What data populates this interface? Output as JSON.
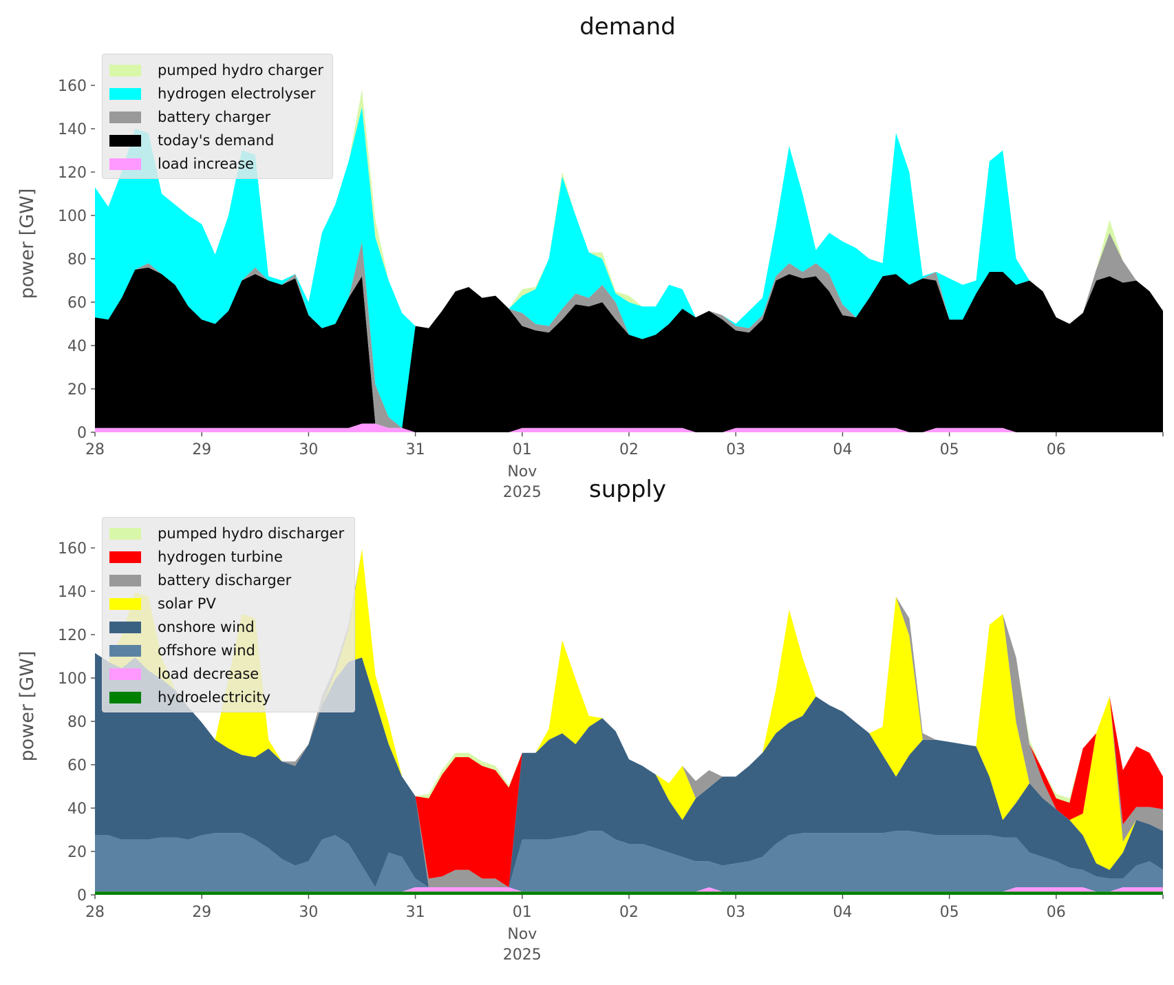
{
  "chart_data": [
    {
      "type": "area",
      "stacked": true,
      "title": "demand",
      "ylabel": "power [GW]",
      "xlabel": "",
      "ylim": [
        0,
        174
      ],
      "yticks": [
        0,
        20,
        40,
        60,
        80,
        100,
        120,
        140,
        160
      ],
      "x_start": "2025-10-28 00:00",
      "step_hours": 3,
      "xtick_labels": [
        "28",
        "29",
        "30",
        "31",
        "01",
        "02",
        "03",
        "04",
        "05",
        "06"
      ],
      "xtick_sublabel": {
        "under": "01",
        "lines": [
          "Nov",
          "2025"
        ]
      },
      "legend_position": "top-left",
      "series": [
        {
          "name": "load increase",
          "color": "#ff99ff",
          "values": [
            2,
            2,
            2,
            2,
            2,
            2,
            2,
            2,
            2,
            2,
            2,
            2,
            2,
            2,
            2,
            2,
            2,
            2,
            2,
            2,
            4,
            4,
            2,
            2,
            0,
            0,
            0,
            0,
            0,
            0,
            0,
            0,
            2,
            2,
            2,
            2,
            2,
            2,
            2,
            2,
            2,
            2,
            2,
            2,
            2,
            0,
            0,
            0,
            2,
            2,
            2,
            2,
            2,
            2,
            2,
            2,
            2,
            2,
            2,
            2,
            2,
            0,
            0,
            2,
            2,
            2,
            2,
            2,
            2,
            0,
            0,
            0,
            0,
            0,
            0,
            0,
            0,
            0,
            0,
            0,
            0
          ]
        },
        {
          "name": "today's demand",
          "color": "#000000",
          "values": [
            51,
            50,
            60,
            73,
            74,
            71,
            66,
            56,
            50,
            48,
            54,
            68,
            71,
            68,
            66,
            69,
            52,
            46,
            48,
            60,
            68,
            0,
            0,
            0,
            49,
            48,
            56,
            65,
            67,
            62,
            63,
            57,
            47,
            45,
            44,
            50,
            57,
            56,
            58,
            50,
            43,
            41,
            43,
            48,
            55,
            53,
            56,
            52,
            45,
            44,
            50,
            68,
            71,
            69,
            70,
            63,
            52,
            51,
            60,
            70,
            71,
            68,
            71,
            68,
            50,
            50,
            62,
            72,
            72,
            68,
            70,
            65,
            53,
            50,
            55,
            70,
            72,
            69,
            70,
            65,
            56
          ]
        },
        {
          "name": "battery charger",
          "color": "#999999",
          "values": [
            0,
            0,
            0,
            0,
            2,
            0,
            0,
            0,
            0,
            0,
            0,
            0,
            3,
            0,
            0,
            2,
            0,
            0,
            0,
            0,
            16,
            18,
            5,
            0,
            0,
            0,
            0,
            0,
            0,
            0,
            0,
            0,
            6,
            3,
            3,
            5,
            5,
            4,
            8,
            8,
            0,
            0,
            0,
            0,
            0,
            0,
            0,
            2,
            2,
            2,
            2,
            2,
            5,
            3,
            6,
            8,
            5,
            0,
            0,
            0,
            0,
            0,
            0,
            4,
            0,
            0,
            0,
            0,
            0,
            0,
            0,
            0,
            0,
            0,
            0,
            5,
            20,
            10,
            0,
            0,
            0
          ]
        },
        {
          "name": "hydrogen electrolyser",
          "color": "#00ffff",
          "values": [
            60,
            52,
            58,
            65,
            60,
            37,
            37,
            42,
            44,
            32,
            44,
            60,
            52,
            2,
            2,
            0,
            6,
            44,
            55,
            63,
            62,
            68,
            63,
            53,
            0,
            0,
            0,
            0,
            0,
            0,
            0,
            0,
            8,
            16,
            31,
            61,
            36,
            21,
            12,
            4,
            15,
            15,
            13,
            18,
            9,
            0,
            0,
            0,
            1,
            8,
            8,
            23,
            54,
            36,
            6,
            19,
            29,
            32,
            18,
            6,
            65,
            52,
            1,
            0,
            19,
            16,
            6,
            51,
            56,
            12,
            0,
            0,
            0,
            0,
            0,
            0,
            0,
            0,
            0,
            0,
            0
          ]
        },
        {
          "name": "pumped hydro charger",
          "color": "#d9f7a9",
          "values": [
            0,
            0,
            0,
            0,
            0,
            0,
            0,
            0,
            0,
            0,
            0,
            0,
            0,
            0,
            0,
            0,
            0,
            0,
            0,
            0,
            8,
            8,
            0,
            0,
            0,
            0,
            0,
            0,
            0,
            0,
            0,
            0,
            3,
            1,
            0,
            2,
            0,
            0,
            3,
            1,
            3,
            0,
            0,
            0,
            0,
            0,
            0,
            0,
            0,
            0,
            0,
            0,
            0,
            0,
            0,
            0,
            0,
            0,
            0,
            0,
            0,
            0,
            0,
            0,
            0,
            0,
            0,
            0,
            0,
            0,
            0,
            0,
            0,
            0,
            0,
            0,
            6,
            0,
            0,
            0,
            0
          ]
        }
      ]
    },
    {
      "type": "area",
      "stacked": true,
      "title": "supply",
      "ylabel": "power [GW]",
      "xlabel": "",
      "ylim": [
        0,
        174
      ],
      "yticks": [
        0,
        20,
        40,
        60,
        80,
        100,
        120,
        140,
        160
      ],
      "x_start": "2025-10-28 00:00",
      "step_hours": 3,
      "xtick_labels": [
        "28",
        "29",
        "30",
        "31",
        "01",
        "02",
        "03",
        "04",
        "05",
        "06"
      ],
      "xtick_sublabel": {
        "under": "01",
        "lines": [
          "Nov",
          "2025"
        ]
      },
      "legend_position": "top-left",
      "series": [
        {
          "name": "hydroelectricity",
          "color": "#008000",
          "values": [
            1.5,
            1.5,
            1.5,
            1.5,
            1.5,
            1.5,
            1.5,
            1.5,
            1.5,
            1.5,
            1.5,
            1.5,
            1.5,
            1.5,
            1.5,
            1.5,
            1.5,
            1.5,
            1.5,
            1.5,
            1.5,
            1.5,
            1.5,
            1.5,
            1.5,
            1.5,
            1.5,
            1.5,
            1.5,
            1.5,
            1.5,
            1.5,
            1.5,
            1.5,
            1.5,
            1.5,
            1.5,
            1.5,
            1.5,
            1.5,
            1.5,
            1.5,
            1.5,
            1.5,
            1.5,
            1.5,
            1.5,
            1.5,
            1.5,
            1.5,
            1.5,
            1.5,
            1.5,
            1.5,
            1.5,
            1.5,
            1.5,
            1.5,
            1.5,
            1.5,
            1.5,
            1.5,
            1.5,
            1.5,
            1.5,
            1.5,
            1.5,
            1.5,
            1.5,
            1.5,
            1.5,
            1.5,
            1.5,
            1.5,
            1.5,
            1.5,
            1.5,
            1.5,
            1.5,
            1.5,
            1.5
          ]
        },
        {
          "name": "load decrease",
          "color": "#ff99ff",
          "values": [
            0,
            0,
            0,
            0,
            0,
            0,
            0,
            0,
            0,
            0,
            0,
            0,
            0,
            0,
            0,
            0,
            0,
            0,
            0,
            0,
            0,
            0,
            0,
            0,
            2,
            2,
            2,
            2,
            2,
            2,
            2,
            2,
            0,
            0,
            0,
            0,
            0,
            0,
            0,
            0,
            0,
            0,
            0,
            0,
            0,
            0,
            2,
            0,
            0,
            0,
            0,
            0,
            0,
            0,
            0,
            0,
            0,
            0,
            0,
            0,
            0,
            0,
            0,
            0,
            0,
            0,
            0,
            0,
            0,
            2,
            2,
            2,
            2,
            2,
            2,
            0,
            0,
            2,
            2,
            2,
            2
          ]
        },
        {
          "name": "offshore wind",
          "color": "#5b82a3",
          "values": [
            26,
            26,
            24,
            24,
            24,
            25,
            25,
            24,
            26,
            27,
            27,
            27,
            24,
            20,
            15,
            12,
            14,
            24,
            26,
            22,
            12,
            2,
            18,
            16,
            4,
            0,
            0,
            0,
            0,
            0,
            0,
            0,
            24,
            24,
            24,
            25,
            26,
            28,
            28,
            24,
            22,
            22,
            20,
            18,
            16,
            14,
            12,
            12,
            13,
            14,
            16,
            22,
            26,
            27,
            27,
            27,
            27,
            27,
            27,
            27,
            28,
            28,
            27,
            26,
            26,
            26,
            26,
            26,
            25,
            23,
            16,
            14,
            12,
            9,
            8,
            7,
            6,
            4,
            10,
            12,
            8
          ]
        },
        {
          "name": "onshore wind",
          "color": "#3b6182",
          "values": [
            84,
            80,
            79,
            84,
            78,
            73,
            68,
            61,
            52,
            43,
            39,
            36,
            38,
            46,
            45,
            46,
            54,
            62,
            72,
            84,
            96,
            86,
            50,
            37,
            38,
            0,
            0,
            0,
            0,
            0,
            0,
            0,
            40,
            40,
            46,
            48,
            42,
            48,
            52,
            50,
            39,
            36,
            34,
            24,
            17,
            29,
            34,
            41,
            40,
            44,
            48,
            51,
            52,
            54,
            63,
            59,
            56,
            51,
            46,
            36,
            25,
            35,
            43,
            44,
            43,
            42,
            41,
            27,
            8,
            16,
            32,
            27,
            24,
            22,
            16,
            6,
            4,
            12,
            21,
            17,
            18
          ]
        },
        {
          "name": "solar PV",
          "color": "#ffff00",
          "values": [
            0,
            0,
            15,
            30,
            34,
            10,
            0,
            0,
            0,
            0,
            32,
            65,
            64,
            4,
            0,
            0,
            0,
            0,
            3,
            15,
            50,
            12,
            10,
            0,
            0,
            0,
            0,
            0,
            0,
            0,
            0,
            0,
            0,
            0,
            5,
            43,
            30,
            5,
            0,
            0,
            0,
            0,
            0,
            8,
            25,
            0,
            0,
            0,
            0,
            0,
            0,
            20,
            52,
            27,
            0,
            0,
            0,
            0,
            0,
            13,
            83,
            55,
            0,
            0,
            0,
            0,
            0,
            70,
            95,
            37,
            0,
            0,
            0,
            0,
            10,
            60,
            80,
            5,
            0,
            0,
            0
          ]
        },
        {
          "name": "battery discharger",
          "color": "#999999",
          "values": [
            0,
            0,
            0,
            0,
            0,
            0,
            0,
            0,
            0,
            0,
            0,
            0,
            0,
            0,
            0,
            2,
            0,
            4,
            3,
            2,
            0,
            0,
            0,
            0,
            0,
            4,
            5,
            8,
            8,
            4,
            4,
            0,
            0,
            0,
            0,
            0,
            0,
            0,
            0,
            0,
            0,
            0,
            0,
            0,
            0,
            8,
            8,
            0,
            0,
            0,
            0,
            0,
            0,
            0,
            0,
            0,
            0,
            0,
            0,
            0,
            0,
            8,
            3,
            0,
            0,
            0,
            0,
            0,
            0,
            30,
            18,
            8,
            0,
            0,
            0,
            0,
            0,
            8,
            6,
            8,
            10
          ]
        },
        {
          "name": "hydrogen turbine",
          "color": "#ff0000",
          "values": [
            0,
            0,
            0,
            0,
            0,
            0,
            0,
            0,
            0,
            0,
            0,
            0,
            0,
            0,
            0,
            0,
            0,
            0,
            0,
            0,
            0,
            0,
            0,
            0,
            0,
            37,
            47,
            52,
            52,
            52,
            50,
            46,
            0,
            0,
            0,
            0,
            0,
            0,
            0,
            0,
            0,
            0,
            0,
            0,
            0,
            0,
            0,
            0,
            0,
            0,
            0,
            0,
            0,
            0,
            0,
            0,
            0,
            0,
            0,
            0,
            0,
            0,
            0,
            0,
            0,
            0,
            0,
            0,
            0,
            0,
            0,
            5,
            5,
            8,
            30,
            0,
            0,
            25,
            28,
            25,
            15
          ]
        },
        {
          "name": "pumped hydro discharger",
          "color": "#d9f7a9",
          "values": [
            0,
            0,
            0,
            0,
            0,
            0,
            0,
            0,
            0,
            0,
            0,
            0,
            0,
            0,
            0,
            0,
            0,
            0,
            0,
            0,
            0,
            0,
            0,
            0,
            0,
            2,
            2,
            2,
            2,
            2,
            2,
            1,
            0,
            0,
            0,
            0,
            0,
            0,
            0,
            0,
            0,
            0,
            0,
            0,
            0,
            0,
            0,
            0,
            0,
            0,
            0,
            0,
            0,
            0,
            0,
            0,
            0,
            0,
            0,
            0,
            0,
            0,
            0,
            0,
            0,
            0,
            0,
            0,
            0,
            0,
            2,
            0,
            2,
            2,
            0,
            0,
            0,
            0,
            0,
            0,
            0
          ]
        }
      ]
    }
  ]
}
